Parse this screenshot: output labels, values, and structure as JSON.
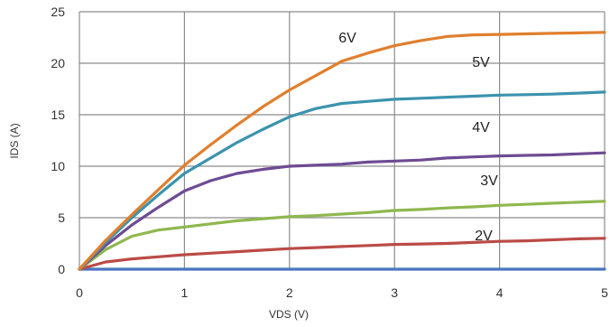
{
  "chart_data": {
    "type": "line",
    "xlabel": "VDS (V)",
    "ylabel": "IDS (A)",
    "xlim": [
      0,
      5
    ],
    "ylim": [
      0,
      25
    ],
    "xticks": [
      "0",
      "1",
      "2",
      "3",
      "4",
      "5"
    ],
    "yticks": [
      "0",
      "5",
      "10",
      "15",
      "20",
      "25"
    ],
    "grid": true,
    "legend": "none",
    "series": [
      {
        "name": "6V",
        "color": "#e07f2e",
        "points": [
          [
            0,
            0
          ],
          [
            0.25,
            2.8
          ],
          [
            0.5,
            5.3
          ],
          [
            0.75,
            7.7
          ],
          [
            1,
            10.1
          ],
          [
            1.25,
            12.1
          ],
          [
            1.5,
            14.0
          ],
          [
            1.75,
            15.8
          ],
          [
            2,
            17.4
          ],
          [
            2.25,
            18.8
          ],
          [
            2.5,
            20.2
          ],
          [
            2.75,
            21.0
          ],
          [
            3,
            21.7
          ],
          [
            3.25,
            22.2
          ],
          [
            3.5,
            22.6
          ],
          [
            3.75,
            22.75
          ],
          [
            4,
            22.8
          ],
          [
            4.25,
            22.85
          ],
          [
            4.5,
            22.9
          ],
          [
            4.75,
            22.95
          ],
          [
            5,
            23.0
          ]
        ]
      },
      {
        "name": "5V",
        "color": "#3c93ae",
        "points": [
          [
            0,
            0
          ],
          [
            0.25,
            2.6
          ],
          [
            0.5,
            5.0
          ],
          [
            0.75,
            7.2
          ],
          [
            1,
            9.3
          ],
          [
            1.25,
            10.8
          ],
          [
            1.5,
            12.3
          ],
          [
            1.75,
            13.6
          ],
          [
            2,
            14.8
          ],
          [
            2.25,
            15.6
          ],
          [
            2.5,
            16.1
          ],
          [
            2.75,
            16.3
          ],
          [
            3,
            16.5
          ],
          [
            3.25,
            16.6
          ],
          [
            3.5,
            16.7
          ],
          [
            3.75,
            16.8
          ],
          [
            4,
            16.9
          ],
          [
            4.25,
            16.95
          ],
          [
            4.5,
            17.0
          ],
          [
            4.75,
            17.1
          ],
          [
            5,
            17.2
          ]
        ]
      },
      {
        "name": "4V",
        "color": "#6e4b94",
        "points": [
          [
            0,
            0
          ],
          [
            0.25,
            2.3
          ],
          [
            0.5,
            4.3
          ],
          [
            0.75,
            6.0
          ],
          [
            1,
            7.6
          ],
          [
            1.25,
            8.6
          ],
          [
            1.5,
            9.3
          ],
          [
            1.75,
            9.7
          ],
          [
            2,
            10.0
          ],
          [
            2.25,
            10.1
          ],
          [
            2.5,
            10.2
          ],
          [
            2.75,
            10.4
          ],
          [
            3,
            10.5
          ],
          [
            3.25,
            10.6
          ],
          [
            3.5,
            10.8
          ],
          [
            3.75,
            10.9
          ],
          [
            4,
            11.0
          ],
          [
            4.25,
            11.05
          ],
          [
            4.5,
            11.1
          ],
          [
            4.75,
            11.2
          ],
          [
            5,
            11.3
          ]
        ]
      },
      {
        "name": "3V",
        "color": "#8fb74e",
        "points": [
          [
            0,
            0
          ],
          [
            0.25,
            1.9
          ],
          [
            0.5,
            3.2
          ],
          [
            0.75,
            3.8
          ],
          [
            1,
            4.1
          ],
          [
            1.25,
            4.4
          ],
          [
            1.5,
            4.7
          ],
          [
            1.75,
            4.9
          ],
          [
            2,
            5.1
          ],
          [
            2.25,
            5.2
          ],
          [
            2.5,
            5.35
          ],
          [
            2.75,
            5.5
          ],
          [
            3,
            5.7
          ],
          [
            3.25,
            5.8
          ],
          [
            3.5,
            5.95
          ],
          [
            3.75,
            6.05
          ],
          [
            4,
            6.2
          ],
          [
            4.25,
            6.3
          ],
          [
            4.5,
            6.4
          ],
          [
            4.75,
            6.5
          ],
          [
            5,
            6.6
          ]
        ]
      },
      {
        "name": "2V",
        "color": "#bb4b48",
        "points": [
          [
            0,
            0
          ],
          [
            0.25,
            0.7
          ],
          [
            0.5,
            1.0
          ],
          [
            0.75,
            1.2
          ],
          [
            1,
            1.4
          ],
          [
            1.25,
            1.55
          ],
          [
            1.5,
            1.7
          ],
          [
            1.75,
            1.85
          ],
          [
            2,
            2.0
          ],
          [
            2.25,
            2.1
          ],
          [
            2.5,
            2.2
          ],
          [
            2.75,
            2.3
          ],
          [
            3,
            2.4
          ],
          [
            3.25,
            2.45
          ],
          [
            3.5,
            2.5
          ],
          [
            3.75,
            2.6
          ],
          [
            4,
            2.7
          ],
          [
            4.25,
            2.75
          ],
          [
            4.5,
            2.85
          ],
          [
            4.75,
            2.95
          ],
          [
            5,
            3.0
          ]
        ]
      },
      {
        "name": "",
        "color": "#4a76be",
        "points": [
          [
            0,
            0
          ],
          [
            5,
            0
          ]
        ]
      }
    ]
  }
}
